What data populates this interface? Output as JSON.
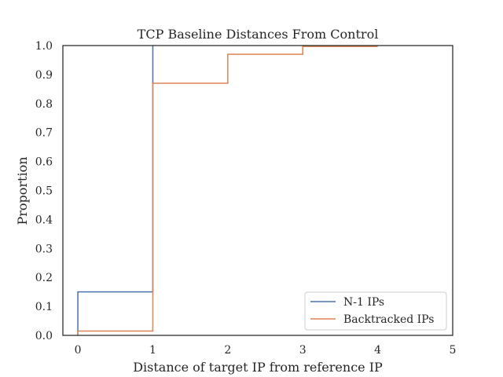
{
  "chart_data": {
    "type": "line",
    "step": true,
    "title": "TCP Baseline Distances From Control",
    "xlabel": "Distance of target IP from reference IP",
    "ylabel": "Proportion",
    "xlim": [
      -0.2,
      5
    ],
    "ylim": [
      0,
      1
    ],
    "xticks": [
      "0",
      "1",
      "2",
      "3",
      "4",
      "5"
    ],
    "yticks": [
      "0.0",
      "0.1",
      "0.2",
      "0.3",
      "0.4",
      "0.5",
      "0.6",
      "0.7",
      "0.8",
      "0.9",
      "1.0"
    ],
    "grid": false,
    "legend_position": "bottom-right",
    "series": [
      {
        "name": "N-1 IPs",
        "color": "#4c72b0",
        "x": [
          0,
          0,
          1,
          1
        ],
        "y": [
          0,
          0.15,
          0.15,
          1.0
        ]
      },
      {
        "name": "Backtracked IPs",
        "color": "#dd8452",
        "x": [
          0,
          0,
          1,
          1,
          2,
          2,
          3,
          3,
          4
        ],
        "y": [
          0,
          0.015,
          0.015,
          0.87,
          0.87,
          0.97,
          0.97,
          0.997,
          0.997
        ]
      }
    ]
  }
}
